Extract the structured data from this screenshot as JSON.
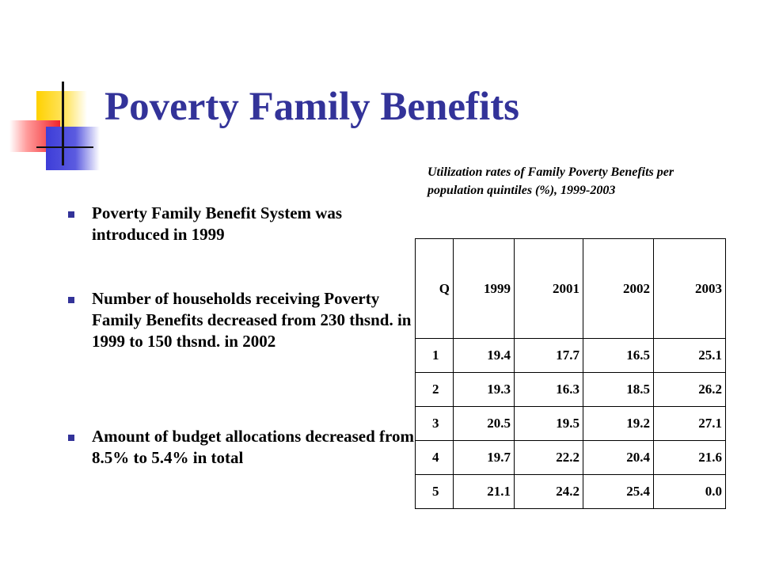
{
  "title": "Poverty Family Benefits",
  "bullets": [
    {
      "text": "Poverty Family Benefit System was introduced in 1999"
    },
    {
      "text": "Number of households receiving Poverty Family Benefits decreased from 230  thsnd. in 1999 to 150 thsnd. in 2002"
    },
    {
      "text": "Amount of budget allocations decreased from 8.5% to 5.4% in total"
    }
  ],
  "table": {
    "caption": "Utilization rates of Family Poverty Benefits per population quintiles (%), 1999-2003",
    "headers": [
      "Q",
      "1999",
      "2001",
      "2002",
      "2003"
    ],
    "rows": [
      [
        "1",
        "19.4",
        "17.7",
        "16.5",
        "25.1"
      ],
      [
        "2",
        "19.3",
        "16.3",
        "18.5",
        "26.2"
      ],
      [
        "3",
        "20.5",
        "19.5",
        "19.2",
        "27.1"
      ],
      [
        "4",
        "19.7",
        "22.2",
        "20.4",
        "21.6"
      ],
      [
        "5",
        "21.1",
        "24.2",
        "25.4",
        "0.0"
      ]
    ]
  }
}
